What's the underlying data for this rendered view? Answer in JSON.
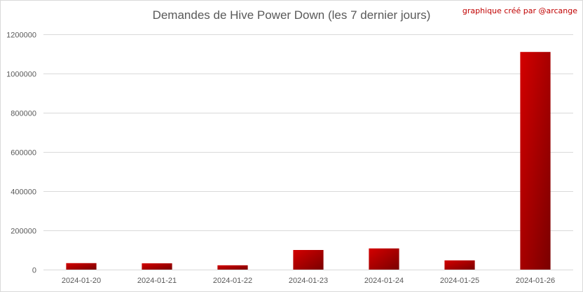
{
  "header": {
    "title": "Demandes de Hive Power Down (les 7 dernier jours)",
    "credit": "graphique créé par @arcange"
  },
  "colors": {
    "bar_light": "#d40000",
    "bar_dark": "#7a0000",
    "grid": "#d9d9d9",
    "text": "#595959",
    "credit": "#c00000"
  },
  "chart_data": {
    "type": "bar",
    "title": "Demandes de Hive Power Down (les 7 dernier jours)",
    "xlabel": "",
    "ylabel": "",
    "categories": [
      "2024-01-20",
      "2024-01-21",
      "2024-01-22",
      "2024-01-23",
      "2024-01-24",
      "2024-01-25",
      "2024-01-26"
    ],
    "values": [
      33000,
      32000,
      22000,
      100000,
      108000,
      47000,
      1110000
    ],
    "ylim": [
      0,
      1200000
    ],
    "yticks": [
      0,
      200000,
      400000,
      600000,
      800000,
      1000000,
      1200000
    ],
    "ytick_labels": [
      "0",
      "200000",
      "400000",
      "600000",
      "800000",
      "1000000",
      "1200000"
    ],
    "grid": true,
    "legend": "none"
  }
}
